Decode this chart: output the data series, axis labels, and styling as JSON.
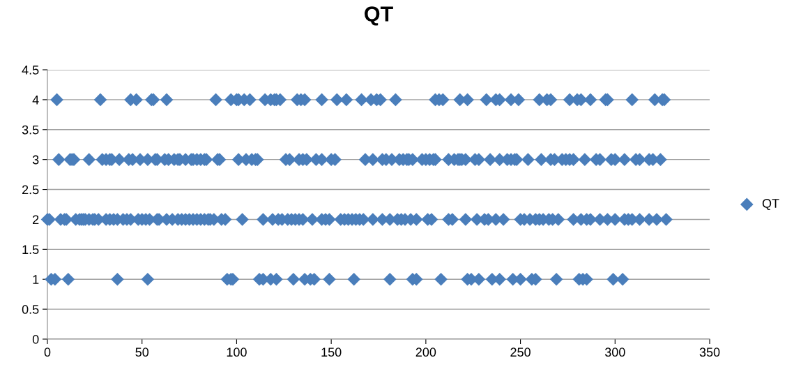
{
  "chart_data": {
    "type": "scatter",
    "title": "QT",
    "xlim": [
      0,
      350
    ],
    "xticks": [
      0,
      50,
      100,
      150,
      200,
      250,
      300,
      350
    ],
    "ylim": [
      0,
      4.5
    ],
    "yticks": [
      0,
      0.5,
      1,
      1.5,
      2,
      2.5,
      3,
      3.5,
      4,
      4.5
    ],
    "grid": "y",
    "legend": "right",
    "marker": "diamond",
    "series": [
      {
        "name": "QT",
        "color": "#4a7ebb",
        "x": [
          5,
          28,
          44,
          47,
          55,
          56,
          63,
          89,
          97,
          100,
          101,
          104,
          107,
          115,
          118,
          120,
          121,
          123,
          132,
          134,
          136,
          145,
          153,
          158,
          166,
          171,
          174,
          176,
          184,
          205,
          207,
          209,
          218,
          222,
          232,
          237,
          239,
          245,
          249,
          260,
          264,
          266,
          276,
          280,
          282,
          287,
          295,
          296,
          309,
          321,
          325,
          326,
          6,
          12,
          13,
          14,
          22,
          29,
          31,
          33,
          34,
          38,
          43,
          45,
          49,
          53,
          57,
          58,
          62,
          64,
          67,
          69,
          70,
          73,
          76,
          77,
          79,
          81,
          83,
          84,
          90,
          91,
          101,
          105,
          108,
          110,
          111,
          126,
          128,
          133,
          135,
          137,
          142,
          145,
          150,
          152,
          168,
          172,
          177,
          179,
          182,
          186,
          188,
          190,
          191,
          193,
          198,
          200,
          202,
          204,
          205,
          212,
          215,
          217,
          218,
          219,
          221,
          226,
          228,
          234,
          239,
          243,
          245,
          247,
          248,
          254,
          261,
          266,
          268,
          272,
          274,
          276,
          278,
          284,
          290,
          292,
          298,
          300,
          305,
          311,
          313,
          318,
          320,
          324,
          0,
          1,
          7,
          9,
          10,
          15,
          17,
          18,
          19,
          20,
          22,
          24,
          25,
          27,
          31,
          33,
          35,
          37,
          40,
          42,
          44,
          48,
          50,
          52,
          54,
          58,
          59,
          63,
          66,
          69,
          71,
          73,
          75,
          77,
          79,
          81,
          83,
          85,
          86,
          88,
          92,
          94,
          103,
          114,
          119,
          122,
          124,
          127,
          129,
          131,
          133,
          135,
          140,
          145,
          147,
          149,
          155,
          157,
          159,
          161,
          163,
          165,
          167,
          172,
          177,
          181,
          185,
          187,
          189,
          192,
          195,
          201,
          203,
          212,
          214,
          221,
          227,
          231,
          233,
          237,
          241,
          250,
          252,
          255,
          258,
          260,
          262,
          265,
          267,
          270,
          278,
          282,
          285,
          287,
          292,
          296,
          300,
          305,
          307,
          309,
          313,
          318,
          322,
          327,
          2,
          4,
          11,
          37,
          53,
          95,
          97,
          98,
          112,
          114,
          118,
          121,
          130,
          136,
          139,
          141,
          149,
          162,
          181,
          193,
          195,
          208,
          222,
          224,
          228,
          235,
          239,
          246,
          250,
          256,
          258,
          269,
          281,
          283,
          285,
          299,
          304
        ],
        "values": [
          4,
          4,
          4,
          4,
          4,
          4,
          4,
          4,
          4,
          4,
          4,
          4,
          4,
          4,
          4,
          4,
          4,
          4,
          4,
          4,
          4,
          4,
          4,
          4,
          4,
          4,
          4,
          4,
          4,
          4,
          4,
          4,
          4,
          4,
          4,
          4,
          4,
          4,
          4,
          4,
          4,
          4,
          4,
          4,
          4,
          4,
          4,
          4,
          4,
          4,
          4,
          4,
          3,
          3,
          3,
          3,
          3,
          3,
          3,
          3,
          3,
          3,
          3,
          3,
          3,
          3,
          3,
          3,
          3,
          3,
          3,
          3,
          3,
          3,
          3,
          3,
          3,
          3,
          3,
          3,
          3,
          3,
          3,
          3,
          3,
          3,
          3,
          3,
          3,
          3,
          3,
          3,
          3,
          3,
          3,
          3,
          3,
          3,
          3,
          3,
          3,
          3,
          3,
          3,
          3,
          3,
          3,
          3,
          3,
          3,
          3,
          3,
          3,
          3,
          3,
          3,
          3,
          3,
          3,
          3,
          3,
          3,
          3,
          3,
          3,
          3,
          3,
          3,
          3,
          3,
          3,
          3,
          3,
          3,
          3,
          3,
          3,
          3,
          3,
          3,
          3,
          3,
          3,
          3,
          2,
          2,
          2,
          2,
          2,
          2,
          2,
          2,
          2,
          2,
          2,
          2,
          2,
          2,
          2,
          2,
          2,
          2,
          2,
          2,
          2,
          2,
          2,
          2,
          2,
          2,
          2,
          2,
          2,
          2,
          2,
          2,
          2,
          2,
          2,
          2,
          2,
          2,
          2,
          2,
          2,
          2,
          2,
          2,
          2,
          2,
          2,
          2,
          2,
          2,
          2,
          2,
          2,
          2,
          2,
          2,
          2,
          2,
          2,
          2,
          2,
          2,
          2,
          2,
          2,
          2,
          2,
          2,
          2,
          2,
          2,
          2,
          2,
          2,
          2,
          2,
          2,
          2,
          2,
          2,
          2,
          2,
          2,
          2,
          2,
          2,
          2,
          2,
          2,
          2,
          2,
          2,
          2,
          2,
          2,
          2,
          2,
          2,
          2,
          2,
          2,
          2,
          2,
          2,
          1,
          1,
          1,
          1,
          1,
          1,
          1,
          1,
          1,
          1,
          1,
          1,
          1,
          1,
          1,
          1,
          1,
          1,
          1,
          1,
          1,
          1,
          1,
          1,
          1,
          1,
          1,
          1,
          1,
          1,
          1,
          1,
          1,
          1,
          1,
          1,
          1
        ]
      }
    ]
  }
}
